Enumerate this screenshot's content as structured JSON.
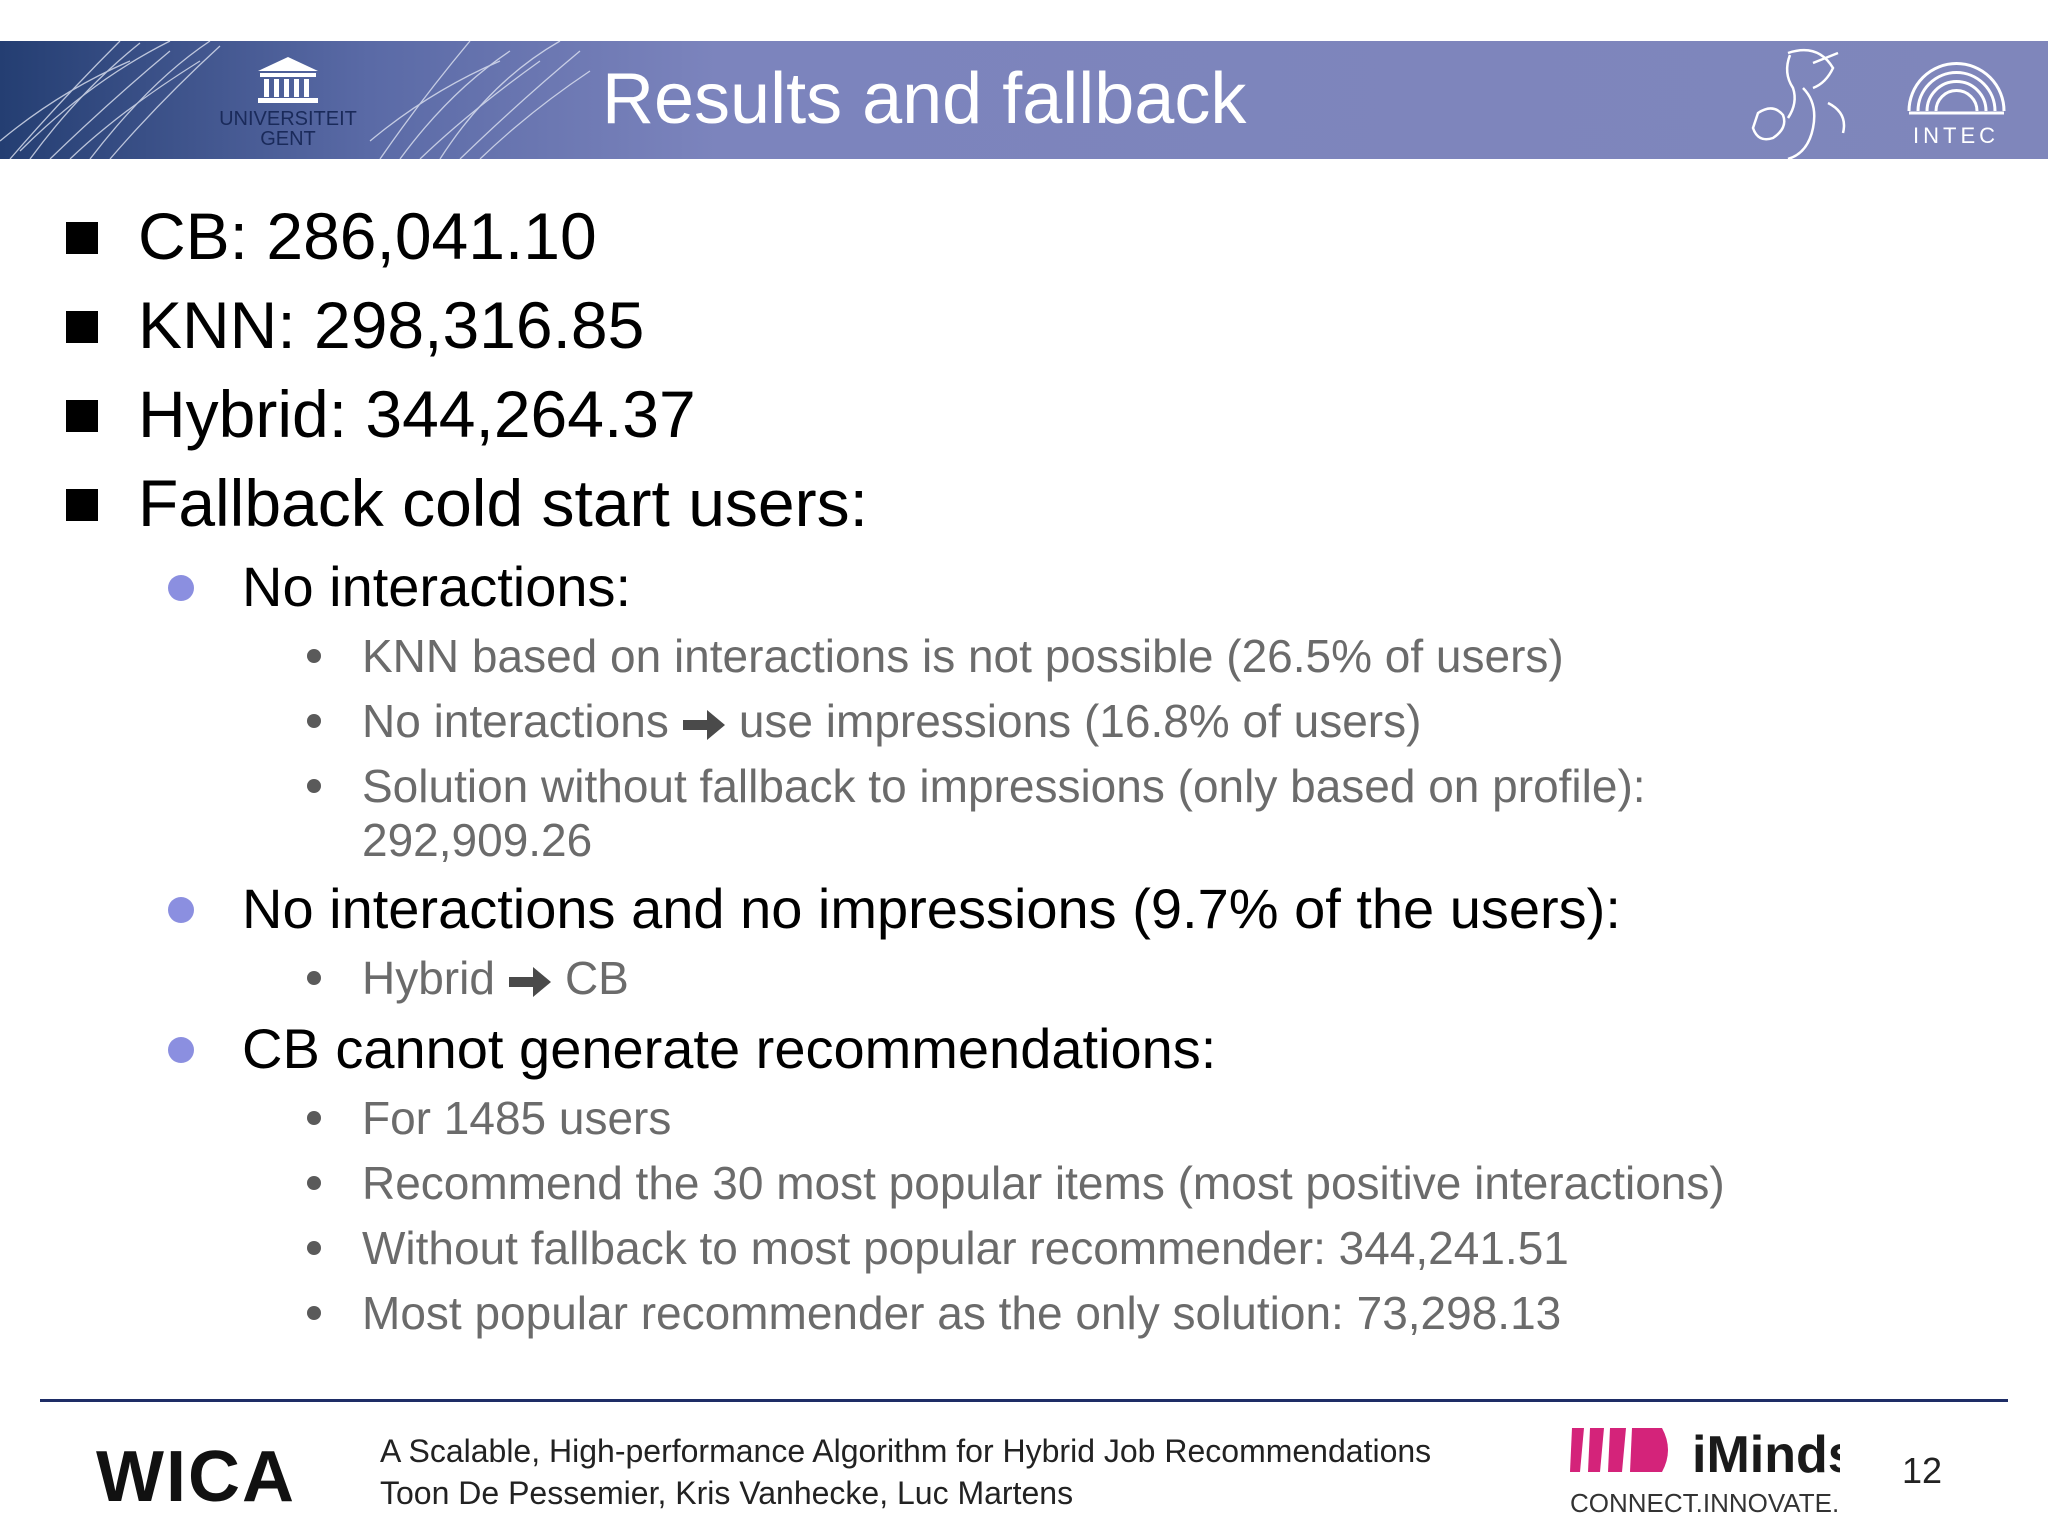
{
  "header": {
    "title": "Results and fallback",
    "university_logo_text": [
      "UNIVERSITEIT",
      "GENT"
    ],
    "intec_logo_text": "INTEC"
  },
  "bullets": {
    "cb": "CB: 286,041.10",
    "knn": "KNN: 298,316.85",
    "hybrid": "Hybrid: 344,264.37",
    "fallback": "Fallback cold start users:",
    "no_interactions": "No interactions:",
    "knn_not_possible": "KNN based on interactions is not possible (26.5% of users)",
    "no_interactions_prefix": "No interactions",
    "no_interactions_suffix": "use impressions (16.8% of users)",
    "solution_without_fallback_line1": "Solution without fallback to impressions (only based on profile):",
    "solution_without_fallback_line2": "292,909.26",
    "no_interactions_no_impressions": "No interactions and no impressions (9.7% of the users):",
    "hybrid_to_cb_prefix": "Hybrid",
    "hybrid_to_cb_suffix": "CB",
    "cb_cannot": "CB cannot generate recommendations:",
    "for_users": "For 1485 users",
    "recommend_popular": "Recommend the 30 most popular items (most positive interactions)",
    "without_fallback_popular": "Without fallback to most popular recommender: 344,241.51",
    "most_popular_only": "Most popular recommender as the only solution: 73,298.13"
  },
  "footer": {
    "wica": "WICA",
    "paper_title": "A Scalable, High-performance Algorithm for Hybrid Job Recommendations",
    "authors": "Toon De Pessemier, Kris Vanhecke, Luc Martens",
    "iminds": "iMinds",
    "iminds_tagline": "CONNECT.INNOVATE.CREATE",
    "page_number": "12"
  },
  "colors": {
    "header_bg": "#7f86bb",
    "level2_bullet": "#8b8fe0",
    "level3_text": "#6b6b6b",
    "footer_line": "#1e2d66",
    "iminds_accent": "#d4237a"
  }
}
